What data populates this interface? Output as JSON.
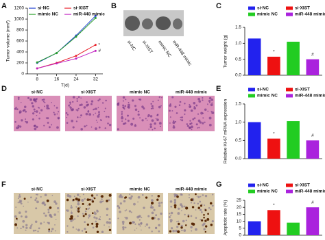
{
  "panels": {
    "B": {
      "label": "B",
      "samples": [
        "si-NC",
        "si-XIST",
        "mimic NC",
        "miR-448 mimic"
      ]
    },
    "D": {
      "label": "D",
      "samples": [
        "si-NC",
        "si-XIST",
        "mimic NC",
        "miR-448 mimic"
      ]
    },
    "F": {
      "label": "F",
      "samples": [
        "si-NC",
        "si-XIST",
        "mimic NC",
        "miR-448 mimic"
      ]
    }
  },
  "chart_data": [
    {
      "type": "line",
      "panel": "A",
      "x": [
        8,
        16,
        24,
        32
      ],
      "xlim": [
        4,
        35
      ],
      "xticks": [
        8,
        16,
        24,
        32
      ],
      "xlabel": "T(d)",
      "ylabel": "Tumor volume (mm³)",
      "ylim": [
        0,
        1200
      ],
      "yticks": [
        0,
        200,
        400,
        600,
        800,
        1000,
        1200
      ],
      "series": [
        {
          "name": "si-NC",
          "color": "#1f3fd0",
          "values": [
            200,
            380,
            700,
            1060
          ]
        },
        {
          "name": "si-XIST",
          "color": "#e8202a",
          "values": [
            100,
            200,
            330,
            530
          ]
        },
        {
          "name": "mimic NC",
          "color": "#2aa02a",
          "values": [
            210,
            380,
            680,
            1020
          ]
        },
        {
          "name": "miR-448 mimic",
          "color": "#c020c0",
          "values": [
            100,
            190,
            280,
            420
          ]
        }
      ],
      "annotations": [
        "*",
        "#"
      ]
    },
    {
      "type": "bar",
      "panel": "C",
      "ylabel": "Tumor weight (g)",
      "ylim": [
        0,
        1.5
      ],
      "yticks": [
        {
          "value": 0,
          "label": "0.0"
        },
        {
          "value": 0.5,
          "label": "0.5"
        },
        {
          "value": 1,
          "label": "1.0"
        },
        {
          "value": 1.5,
          "label": "1.5"
        }
      ],
      "series": [
        {
          "name": "si-NC",
          "color": "#2222ee",
          "values": [
            1.15
          ]
        },
        {
          "name": "si-XIST",
          "color": "#ee1111",
          "values": [
            0.58
          ]
        },
        {
          "name": "mimic NC",
          "color": "#22cc22",
          "values": [
            1.05
          ]
        },
        {
          "name": "miR-448 mimic",
          "color": "#aa22dd",
          "values": [
            0.5
          ]
        }
      ],
      "annotations": [
        "*",
        "#"
      ]
    },
    {
      "type": "bar",
      "panel": "E",
      "ylabel": "Relative Ki-67 mRNA expression",
      "ylim": [
        0,
        1.5
      ],
      "yticks": [
        {
          "value": 0,
          "label": "0.0"
        },
        {
          "value": 0.5,
          "label": "0.5"
        },
        {
          "value": 1,
          "label": "1.0"
        },
        {
          "value": 1.5,
          "label": "1.5"
        }
      ],
      "series": [
        {
          "name": "si-NC",
          "color": "#2222ee",
          "values": [
            1.0
          ]
        },
        {
          "name": "si-XIST",
          "color": "#ee1111",
          "values": [
            0.55
          ]
        },
        {
          "name": "mimic NC",
          "color": "#22cc22",
          "values": [
            1.03
          ]
        },
        {
          "name": "miR-448 mimic",
          "color": "#aa22dd",
          "values": [
            0.5
          ]
        }
      ],
      "annotations": [
        "*",
        "#"
      ]
    },
    {
      "type": "bar",
      "panel": "G",
      "ylabel": "Apoptotic rate (%)",
      "ylim": [
        0,
        25
      ],
      "yticks": [
        0,
        5,
        10,
        15,
        20,
        25
      ],
      "series": [
        {
          "name": "si-NC",
          "color": "#2222ee",
          "values": [
            10
          ]
        },
        {
          "name": "si-XIST",
          "color": "#ee1111",
          "values": [
            18
          ]
        },
        {
          "name": "mimic NC",
          "color": "#22cc22",
          "values": [
            9
          ]
        },
        {
          "name": "miR-448 mimic",
          "color": "#aa22dd",
          "values": [
            20
          ]
        }
      ],
      "annotations": [
        "*",
        "#"
      ]
    }
  ]
}
